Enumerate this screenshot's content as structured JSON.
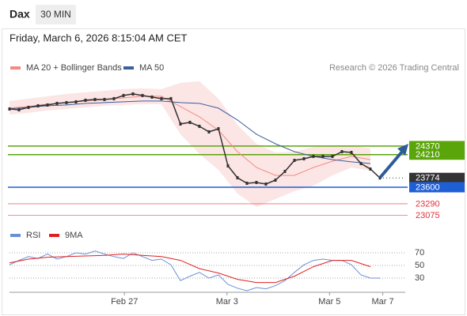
{
  "header": {
    "symbol": "Dax",
    "interval": "30 MIN",
    "timestamp": "Friday, March 6, 2026 8:15:04 AM CET",
    "credit": "Research © 2026 Trading Central"
  },
  "chart_data": [
    {
      "type": "line",
      "xlim": [
        0,
        41.67
      ],
      "ylim": [
        22890,
        25700
      ],
      "xticks": [
        {
          "value": 12.1,
          "label": "Feb 27"
        },
        {
          "value": 22.9,
          "label": "Mar 3"
        },
        {
          "value": 33.7,
          "label": "Mar 5"
        },
        {
          "value": 39.3,
          "label": "Mar 7"
        }
      ],
      "price": {
        "color": "#333333",
        "x": [
          0,
          1,
          2,
          3,
          4,
          5,
          6,
          7,
          8,
          9,
          10,
          11,
          12,
          13,
          14,
          15,
          16,
          17,
          18,
          19,
          20,
          21,
          22,
          23,
          24,
          25,
          26,
          27,
          28,
          29,
          30,
          31,
          32,
          33,
          34,
          35,
          36,
          37,
          38,
          39
        ],
        "values": [
          25065,
          25050,
          25095,
          25124,
          25139,
          25169,
          25184,
          25198,
          25228,
          25243,
          25243,
          25258,
          25317,
          25346,
          25317,
          25287,
          25258,
          25258,
          24784,
          24814,
          24740,
          24636,
          24695,
          24000,
          23778,
          23674,
          23689,
          23659,
          23733,
          23896,
          24103,
          24133,
          24177,
          24177,
          24177,
          24266,
          24251,
          24044,
          23940,
          23774
        ]
      },
      "series": [
        {
          "name": "MA 20 + Bollinger Bands",
          "color": "#f28b82",
          "band_color": "#fbdede",
          "x": [
            0,
            2,
            4,
            6,
            8,
            10,
            12,
            14,
            16,
            18,
            20,
            22,
            24,
            26,
            28,
            30,
            32,
            34,
            36,
            38
          ],
          "values": [
            25080,
            25110,
            25154,
            25184,
            25213,
            25243,
            25272,
            25302,
            25302,
            25110,
            24917,
            24666,
            24266,
            23970,
            23822,
            23822,
            23970,
            24088,
            24177,
            24118
          ],
          "band_upper": [
            25213,
            25258,
            25302,
            25346,
            25376,
            25406,
            25435,
            25450,
            25435,
            25554,
            25583,
            25258,
            24769,
            24414,
            24251,
            24266,
            24355,
            24384,
            24384,
            24325
          ],
          "band_lower": [
            24962,
            24991,
            25036,
            25065,
            25095,
            25124,
            25139,
            25154,
            25154,
            24592,
            24222,
            23926,
            23482,
            23230,
            23378,
            23526,
            23630,
            23822,
            23970,
            23911
          ]
        },
        {
          "name": "MA 50",
          "color": "#3a5f9e",
          "x": [
            0,
            2,
            4,
            6,
            8,
            10,
            12,
            14,
            16,
            18,
            20,
            22,
            24,
            26,
            28,
            30,
            32,
            34,
            36,
            38
          ],
          "values": [
            25065,
            25095,
            25124,
            25139,
            25169,
            25184,
            25198,
            25213,
            25213,
            25184,
            25169,
            25080,
            24858,
            24592,
            24414,
            24266,
            24177,
            24118,
            24074,
            24044
          ]
        }
      ],
      "levels": [
        {
          "value": 24370,
          "color": "#5aa50a",
          "style": "box"
        },
        {
          "value": 24210,
          "color": "#5aa50a",
          "style": "box"
        },
        {
          "value": 23774,
          "color": "#333333",
          "style": "current"
        },
        {
          "value": 23600,
          "color": "#1f5fd6",
          "style": "box"
        },
        {
          "value": 23290,
          "color": "#e0303a",
          "style": "text"
        },
        {
          "value": 23075,
          "color": "#e0303a",
          "style": "text"
        }
      ]
    },
    {
      "type": "line",
      "xlim": [
        0,
        41.67
      ],
      "ylim": [
        10,
        82.5
      ],
      "yticks": [
        30,
        50,
        70
      ],
      "grid": true,
      "series": [
        {
          "name": "RSI",
          "color": "#6b8fd6",
          "x": [
            0,
            1,
            2,
            3,
            4,
            5,
            6,
            7,
            8,
            9,
            10,
            11,
            12,
            13,
            14,
            15,
            16,
            17,
            18,
            19,
            20,
            21,
            22,
            23,
            24,
            25,
            26,
            27,
            28,
            29,
            30,
            31,
            32,
            33,
            34,
            35,
            36,
            37,
            38,
            39
          ],
          "values": [
            51,
            58,
            64,
            61,
            68,
            60,
            64,
            70,
            68,
            73,
            68,
            64,
            61,
            70,
            64,
            58,
            60,
            51,
            26,
            33,
            39,
            30,
            35,
            20,
            14,
            10,
            15,
            13,
            18,
            26,
            39,
            51,
            58,
            60,
            58,
            58,
            51,
            35,
            30,
            30
          ]
        },
        {
          "name": "9MA",
          "color": "#e02020",
          "x": [
            0,
            2,
            4,
            6,
            8,
            10,
            12,
            14,
            16,
            18,
            20,
            22,
            24,
            26,
            28,
            30,
            32,
            34,
            36,
            38
          ],
          "values": [
            54,
            60,
            63,
            64,
            65,
            66,
            68,
            66,
            64,
            58,
            45,
            38,
            28,
            23,
            23,
            33,
            48,
            58,
            58,
            48
          ]
        }
      ]
    }
  ]
}
